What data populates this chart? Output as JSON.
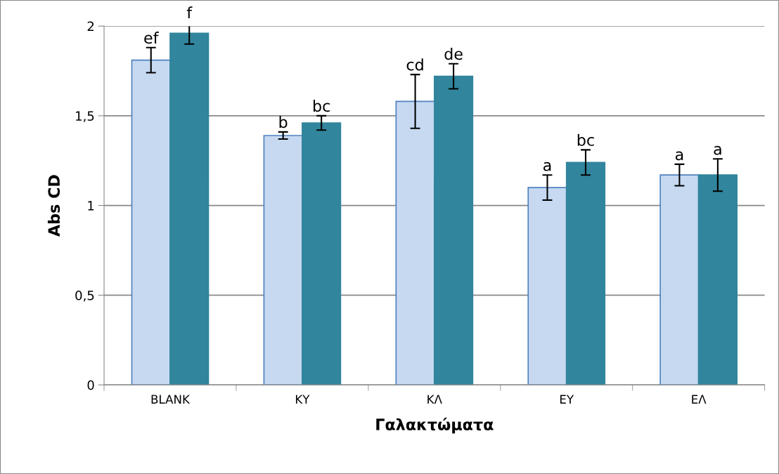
{
  "chart_data": {
    "type": "bar",
    "xlabel": "Γαλακτώματα",
    "ylabel": "Abs CD",
    "categories": [
      "BLANK",
      "ΚΥ",
      "ΚΛ",
      "ΕΥ",
      "ΕΛ"
    ],
    "series": [
      {
        "color": "#c6d9f1",
        "values": [
          1.81,
          1.39,
          1.58,
          1.1,
          1.17
        ],
        "errors": [
          0.07,
          0.02,
          0.15,
          0.07,
          0.06
        ],
        "value_labels": [
          "ef",
          "b",
          "cd",
          "a",
          "a"
        ]
      },
      {
        "color": "#31859c",
        "values": [
          1.96,
          1.46,
          1.72,
          1.24,
          1.17
        ],
        "errors": [
          0.06,
          0.04,
          0.07,
          0.07,
          0.09
        ],
        "value_labels": [
          "f",
          "bc",
          "de",
          "bc",
          "a"
        ]
      }
    ],
    "ylim": [
      0,
      2
    ],
    "yticks": [
      {
        "value": 0,
        "label": "0"
      },
      {
        "value": 0.5,
        "label": "0,5"
      },
      {
        "value": 1,
        "label": "1"
      },
      {
        "value": 1.5,
        "label": "1,5"
      },
      {
        "value": 2,
        "label": "2"
      }
    ],
    "grid": "y"
  }
}
